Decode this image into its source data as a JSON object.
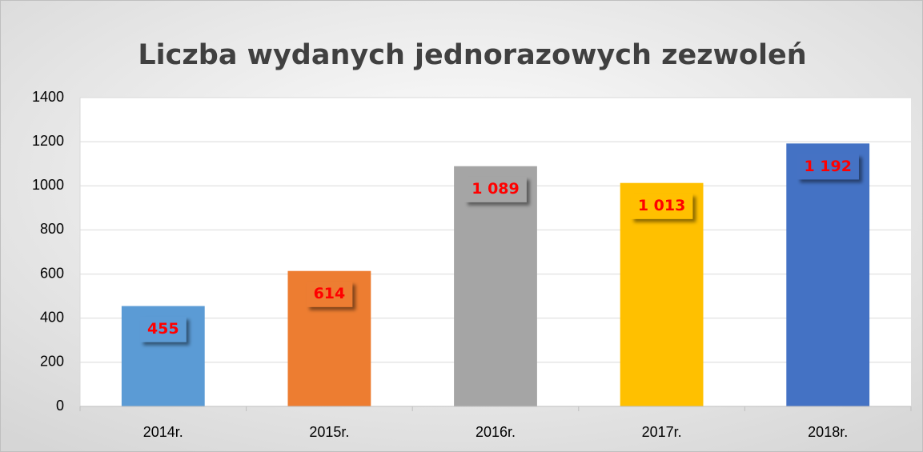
{
  "chart_data": {
    "type": "bar",
    "title": "Liczba wydanych jednorazowych zezwoleń",
    "categories": [
      "2014r.",
      "2015r.",
      "2016r.",
      "2017r.",
      "2018r."
    ],
    "values": [
      455,
      614,
      1089,
      1013,
      1192
    ],
    "value_labels": [
      "455",
      "614",
      "1 089",
      "1 013",
      "1 192"
    ],
    "colors": [
      "#5b9bd5",
      "#ed7d31",
      "#a5a5a5",
      "#ffc000",
      "#4472c4"
    ],
    "ylim": [
      0,
      1400
    ],
    "yticks": [
      0,
      200,
      400,
      600,
      800,
      1000,
      1200,
      1400
    ],
    "grid": true
  }
}
